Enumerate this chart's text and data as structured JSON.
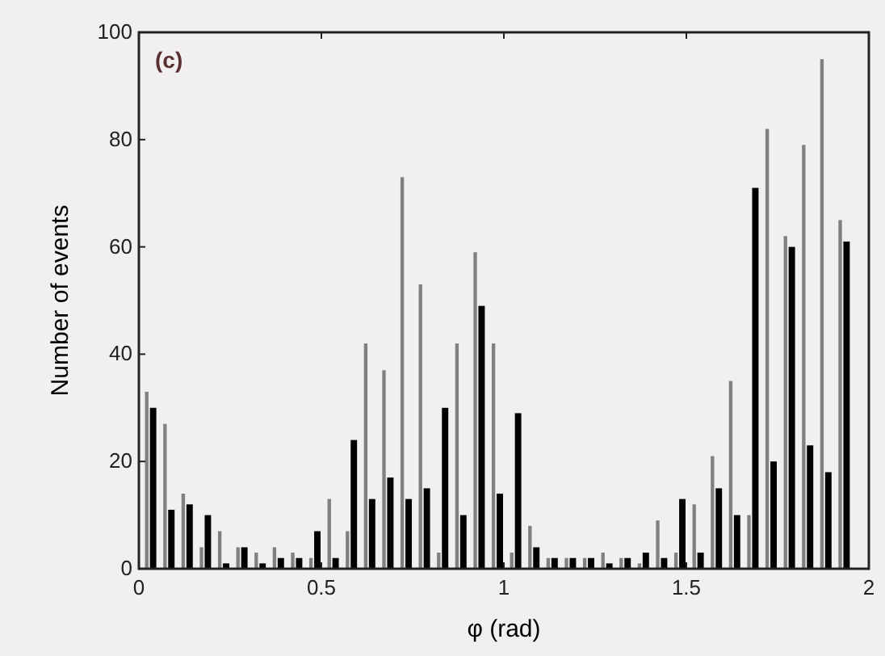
{
  "chart_data": {
    "type": "histogram",
    "xlabel": "φ (rad)",
    "ylabel": "Number of events",
    "annotations": [
      "(c)"
    ],
    "bins": [
      0,
      0.05,
      0.1,
      0.15,
      0.2,
      0.25,
      0.3,
      0.35,
      0.4,
      0.45,
      0.5,
      0.55,
      0.6,
      0.65,
      0.7,
      0.75,
      0.8,
      0.85,
      0.9,
      0.95,
      1,
      1.05,
      1.1,
      1.15,
      1.2,
      1.25,
      1.3,
      1.35,
      1.4,
      1.45,
      1.5,
      1.55,
      1.6,
      1.65,
      1.7,
      1.75,
      1.8,
      1.85,
      1.9,
      1.95
    ],
    "series": [
      {
        "color": "#808080",
        "values": [
          33,
          27,
          14,
          4,
          7,
          4,
          3,
          4,
          3,
          2,
          13,
          7,
          42,
          37,
          73,
          53,
          3,
          42,
          59,
          42,
          3,
          8,
          2,
          2,
          2,
          3,
          2,
          1,
          9,
          3,
          12,
          21,
          35,
          10,
          82,
          62,
          79,
          95,
          65
        ]
      },
      {
        "color": "#000000",
        "values": [
          30,
          11,
          12,
          10,
          1,
          4,
          1,
          2,
          2,
          7,
          2,
          24,
          13,
          17,
          13,
          15,
          30,
          10,
          49,
          14,
          29,
          4,
          2,
          2,
          2,
          1,
          2,
          3,
          2,
          13,
          3,
          15,
          10,
          71,
          20,
          60,
          23,
          18,
          61
        ]
      }
    ],
    "xlim": [
      0,
      2
    ],
    "xticks": [
      0,
      0.5,
      1,
      1.5,
      2
    ],
    "ylim": [
      0,
      100
    ],
    "yticks": [
      0,
      20,
      40,
      60,
      80,
      100
    ]
  }
}
